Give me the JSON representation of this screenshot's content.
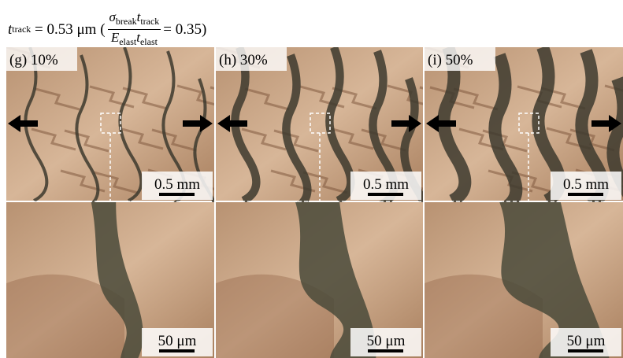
{
  "header": {
    "lhs_symbol": "t",
    "lhs_sub": "track",
    "equals_value": "= 0.53 μm (",
    "num_sigma": "σ",
    "num_sigma_sub": "break",
    "num_t": "t",
    "num_t_sub": "track",
    "den_e": "E",
    "den_e_sub": "elast",
    "den_t": "t",
    "den_t_sub": "elast",
    "ratio": "= 0.35)"
  },
  "panels": [
    {
      "label": "(g) 10%",
      "scale_top": "0.5 mm",
      "scale_bottom": "50 μm"
    },
    {
      "label": "(h) 30%",
      "scale_top": "0.5 mm",
      "scale_bottom": "50 μm"
    },
    {
      "label": "(i) 50%",
      "scale_top": "0.5 mm",
      "scale_bottom": "50 μm"
    }
  ]
}
